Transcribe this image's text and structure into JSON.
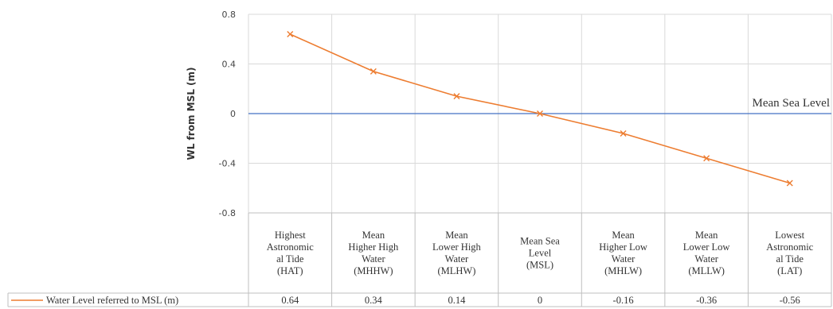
{
  "chart_data": {
    "type": "line",
    "ylabel": "WL from MSL (m)",
    "ylim": [
      -0.8,
      0.8
    ],
    "yticks": [
      "0.8",
      "0.4",
      "0",
      "-0.4",
      "-0.8"
    ],
    "categories": [
      [
        "Highest",
        "Astronomic",
        "al Tide",
        "(HAT)"
      ],
      [
        "Mean",
        "Higher High",
        "Water",
        "(MHHW)"
      ],
      [
        "Mean",
        "Lower High",
        "Water",
        "(MLHW)"
      ],
      [
        "Mean Sea",
        "Level",
        "(MSL)"
      ],
      [
        "Mean",
        "Higher Low",
        "Water",
        "(MHLW)"
      ],
      [
        "Mean",
        "Lower Low",
        "Water",
        "(MLLW)"
      ],
      [
        "Lowest",
        "Astronomic",
        "al Tide",
        "(LAT)"
      ]
    ],
    "series": [
      {
        "name": "Water Level referred to MSL (m)",
        "values": [
          0.64,
          0.34,
          0.14,
          0,
          -0.16,
          -0.36,
          -0.56
        ],
        "value_labels": [
          "0.64",
          "0.34",
          "0.14",
          "0",
          "-0.16",
          "-0.36",
          "-0.56"
        ],
        "color": "#ed7d31"
      }
    ],
    "reference_line": {
      "value": 0,
      "label": "Mean Sea Level",
      "color": "#4472c4"
    },
    "grid": true,
    "data_table": true
  }
}
